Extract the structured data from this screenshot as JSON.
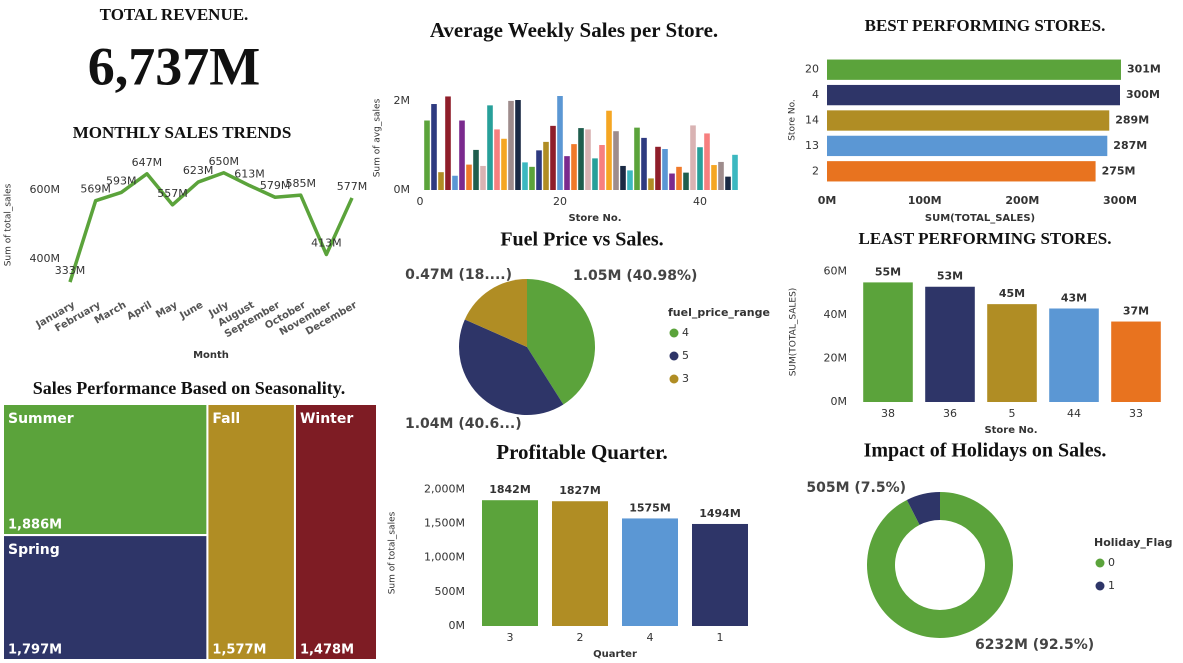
{
  "kpi": {
    "title": "TOTAL REVENUE.",
    "value": "6,737M"
  },
  "chart_data": [
    {
      "type": "line",
      "title": "MONTHLY SALES TRENDS",
      "x_label": "Month",
      "y_label": "Sum of total_sales",
      "categories": [
        "January",
        "February",
        "March",
        "April",
        "May",
        "June",
        "July",
        "August",
        "September",
        "October",
        "November",
        "December"
      ],
      "values": [
        333,
        569,
        593,
        647,
        557,
        623,
        650,
        613,
        579,
        585,
        413,
        577
      ],
      "value_labels": [
        "333M",
        "569M",
        "593M",
        "647M",
        "557M",
        "623M",
        "650M",
        "613M",
        "579M",
        "585M",
        "413M",
        "577M"
      ],
      "color": "#5ba33b",
      "ylim": [
        310,
        687
      ],
      "yticks": [
        {
          "value": 400,
          "label": "400M"
        },
        {
          "value": 600,
          "label": "600M"
        }
      ]
    },
    {
      "type": "bar",
      "title": "Average Weekly Sales per Store.",
      "x_label": "Store No.",
      "y_label": "Sum of avg_sales",
      "x": [
        1,
        2,
        3,
        4,
        5,
        6,
        7,
        8,
        9,
        10,
        11,
        12,
        13,
        14,
        15,
        16,
        17,
        18,
        19,
        20,
        21,
        22,
        23,
        24,
        25,
        26,
        27,
        28,
        29,
        30,
        31,
        32,
        33,
        34,
        35,
        36,
        37,
        38,
        39,
        40,
        41,
        42,
        43,
        44,
        45
      ],
      "values": [
        1.56,
        1.93,
        0.4,
        2.1,
        0.32,
        1.56,
        0.57,
        0.9,
        0.54,
        1.9,
        1.36,
        1.15,
        2.0,
        2.02,
        0.62,
        0.52,
        0.89,
        1.08,
        1.44,
        2.11,
        0.76,
        1.03,
        1.39,
        1.36,
        0.71,
        1.01,
        1.78,
        1.32,
        0.54,
        0.44,
        1.4,
        1.17,
        0.26,
        0.97,
        0.92,
        0.37,
        0.52,
        0.39,
        1.45,
        0.96,
        1.27,
        0.56,
        0.63,
        0.3,
        0.79
      ],
      "colors": [
        "#5ba33b",
        "#2e3a80",
        "#b08d24",
        "#8f1e2a",
        "#5b97d4",
        "#7b2a8e",
        "#f07a2a",
        "#1f5e4e",
        "#d9b3b3",
        "#27a09a",
        "#f77f7f",
        "#f5a623",
        "#9e8c8c",
        "#1a2a44",
        "#3cb8c0"
      ],
      "xlim": [
        0,
        45
      ],
      "xticks": [
        0,
        20,
        40
      ],
      "ylim": [
        0,
        2.2
      ],
      "yticks": [
        {
          "value": 0,
          "label": "0M"
        },
        {
          "value": 2,
          "label": "2M"
        }
      ]
    },
    {
      "type": "hbar",
      "title": "BEST PERFORMING STORES.",
      "x_label": "SUM(TOTAL_SALES)",
      "y_label": "Store No.",
      "categories": [
        "20",
        "4",
        "14",
        "13",
        "2"
      ],
      "values": [
        301,
        300,
        289,
        287,
        275
      ],
      "value_labels": [
        "301M",
        "300M",
        "289M",
        "287M",
        "275M"
      ],
      "colors": [
        "#5ba33b",
        "#2e3568",
        "#b08d24",
        "#5b97d4",
        "#e8731f"
      ],
      "xlim": [
        0,
        300
      ],
      "xticks": [
        {
          "value": 0,
          "label": "0M"
        },
        {
          "value": 100,
          "label": "100M"
        },
        {
          "value": 200,
          "label": "200M"
        },
        {
          "value": 300,
          "label": "300M"
        }
      ]
    },
    {
      "type": "pie",
      "title": "Fuel Price vs Sales.",
      "legend_title": "fuel_price_range",
      "categories": [
        "4",
        "5",
        "3"
      ],
      "values": [
        1.05,
        1.04,
        0.47
      ],
      "value_labels": [
        "1.05M (40.98%)",
        "1.04M (40.6...)",
        "0.47M (18....)"
      ],
      "colors": [
        "#5ba33b",
        "#2e3568",
        "#b08d24"
      ]
    },
    {
      "type": "bar",
      "title": "LEAST PERFORMING STORES.",
      "x_label": "Store No.",
      "y_label": "SUM(TOTAL_SALES)",
      "categories": [
        "38",
        "36",
        "5",
        "44",
        "33"
      ],
      "values": [
        55,
        53,
        45,
        43,
        37
      ],
      "value_labels": [
        "55M",
        "53M",
        "45M",
        "43M",
        "37M"
      ],
      "colors": [
        "#5ba33b",
        "#2e3568",
        "#b08d24",
        "#5b97d4",
        "#e8731f"
      ],
      "ylim": [
        0,
        63
      ],
      "yticks": [
        {
          "value": 0,
          "label": "0M"
        },
        {
          "value": 20,
          "label": "20M"
        },
        {
          "value": 40,
          "label": "40M"
        },
        {
          "value": 60,
          "label": "60M"
        }
      ]
    },
    {
      "type": "treemap",
      "title": "Sales Performance Based on Seasonality.",
      "categories": [
        "Summer",
        "Spring",
        "Fall",
        "Winter"
      ],
      "values": [
        1886,
        1797,
        1577,
        1478
      ],
      "value_labels": [
        "1,886M",
        "1,797M",
        "1,577M",
        "1,478M"
      ],
      "colors": [
        "#5ba33b",
        "#2e3568",
        "#b08d24",
        "#7e1c24"
      ]
    },
    {
      "type": "bar",
      "title": "Profitable Quarter.",
      "x_label": "Quarter",
      "y_label": "Sum of total_sales",
      "categories": [
        "3",
        "2",
        "4",
        "1"
      ],
      "values": [
        1842,
        1827,
        1575,
        1494
      ],
      "value_labels": [
        "1842M",
        "1827M",
        "1575M",
        "1494M"
      ],
      "colors": [
        "#5ba33b",
        "#b08d24",
        "#5b97d4",
        "#2e3568"
      ],
      "ylim": [
        0,
        2050
      ],
      "yticks": [
        {
          "value": 0,
          "label": "0M"
        },
        {
          "value": 500,
          "label": "500M"
        },
        {
          "value": 1000,
          "label": "1,000M"
        },
        {
          "value": 1500,
          "label": "1,500M"
        },
        {
          "value": 2000,
          "label": "2,000M"
        }
      ]
    },
    {
      "type": "donut",
      "title": "Impact of Holidays on Sales.",
      "legend_title": "Holiday_Flag",
      "categories": [
        "0",
        "1"
      ],
      "values": [
        6232,
        505
      ],
      "value_labels": [
        "6232M (92.5%)",
        "505M (7.5%)"
      ],
      "colors": [
        "#5ba33b",
        "#2e3568"
      ]
    }
  ]
}
